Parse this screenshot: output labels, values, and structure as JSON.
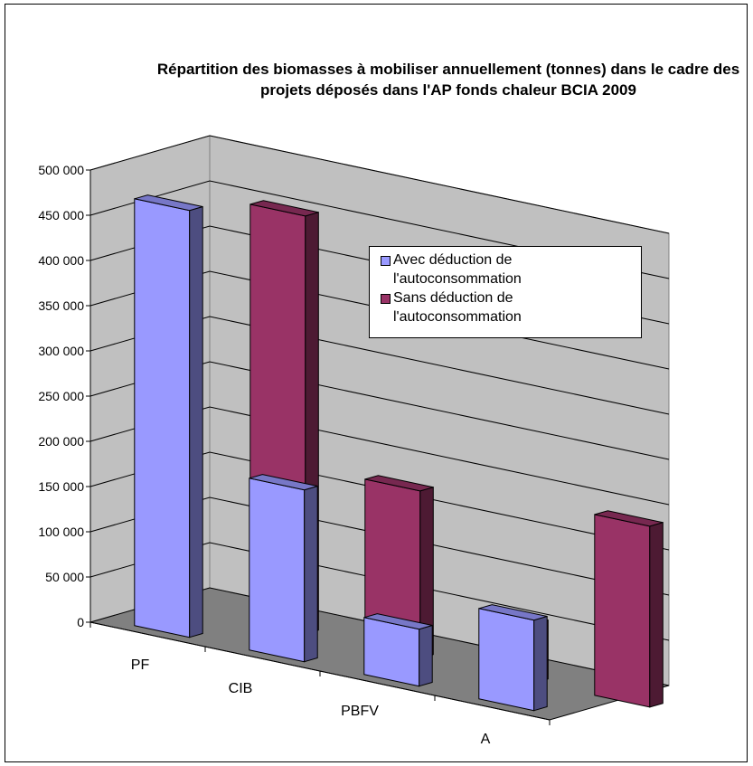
{
  "chart_data": {
    "type": "bar",
    "title": "Répartition des biomasses à mobiliser annuellement (tonnes) dans le cadre des projets déposés dans l'AP fonds chaleur BCIA 2009",
    "categories": [
      "PF",
      "CIB",
      "PBFV",
      "A"
    ],
    "series": [
      {
        "name": "Avec déduction de l'autoconsommation",
        "values": [
          472000,
          190000,
          63000,
          100000
        ],
        "color": "#9999ff"
      },
      {
        "name": "Sans déduction de l'autoconsommation",
        "values": [
          462000,
          185000,
          65000,
          200000
        ],
        "color": "#993366"
      }
    ],
    "ylim": [
      0,
      500000
    ],
    "yticks": [
      "0",
      "50 000",
      "100 000",
      "150 000",
      "200 000",
      "250 000",
      "300 000",
      "350 000",
      "400 000",
      "450 000",
      "500 000"
    ],
    "grid": true,
    "legend_position": "right",
    "wall_color": "#c0c0c0",
    "floor_color": "#808080"
  }
}
